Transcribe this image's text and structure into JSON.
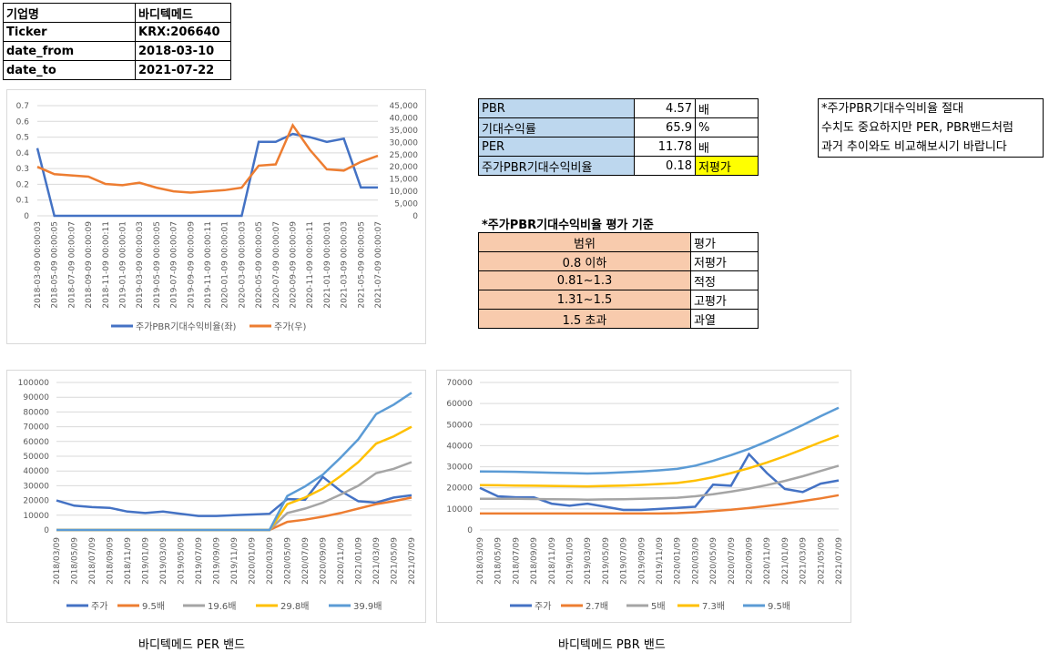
{
  "info": {
    "rows": [
      {
        "label": "기업명",
        "value": "바디텍메드"
      },
      {
        "label": "Ticker",
        "value": "KRX:206640"
      },
      {
        "label": "date_from",
        "value": "2018-03-10"
      },
      {
        "label": "date_to",
        "value": "2021-07-22"
      }
    ]
  },
  "metrics": {
    "rows": [
      {
        "label": "PBR",
        "value": "4.57",
        "unit": "배"
      },
      {
        "label": "기대수익률",
        "value": "65.9",
        "unit": "%"
      },
      {
        "label": "PER",
        "value": "11.78",
        "unit": "배"
      },
      {
        "label": "주가PBR기대수익비율",
        "value": "0.18",
        "unit": "저평가"
      }
    ]
  },
  "note": {
    "lines": [
      "*주가PBR기대수익비율 절대",
      "수치도 중요하지만 PER, PBR밴드처럼",
      "과거 추이와도 비교해보시기 바랍니다"
    ]
  },
  "criteria": {
    "title": "*주가PBR기대수익비율 평가 기준",
    "header": {
      "range": "범위",
      "eval": "평가"
    },
    "rows": [
      {
        "range": "0.8 이하",
        "eval": "저평가"
      },
      {
        "range": "0.81~1.3",
        "eval": "적정"
      },
      {
        "range": "1.31~1.5",
        "eval": "고평가"
      },
      {
        "range": "1.5 초과",
        "eval": "과열"
      }
    ]
  },
  "captions": {
    "per": "바디텍메드 PER 밴드",
    "pbr": "바디텍메드 PBR 밴드"
  },
  "colors": {
    "blue": "#4472c4",
    "orange": "#ed7d31",
    "gray": "#a5a5a5",
    "yellow": "#ffc000",
    "lightblue": "#5b9bd5"
  },
  "chart_data": [
    {
      "type": "line",
      "id": "ratio",
      "x": [
        "2018-03-09 00:00:03",
        "2018-05-09 00:00:05",
        "2018-07-09 00:00:07",
        "2018-09-09 00:00:09",
        "2018-11-09 00:00:11",
        "2019-01-09 00:00:01",
        "2019-03-09 00:00:03",
        "2019-05-09 00:00:05",
        "2019-07-09 00:00:07",
        "2019-09-09 00:00:09",
        "2019-11-09 00:00:11",
        "2020-01-09 00:00:01",
        "2020-03-09 00:00:03",
        "2020-05-09 00:00:05",
        "2020-07-09 00:00:07",
        "2020-09-09 00:00:09",
        "2020-11-09 00:00:11",
        "2021-01-09 00:00:01",
        "2021-03-09 00:00:03",
        "2021-05-09 00:00:05",
        "2021-07-09 00:00:07"
      ],
      "y_left": {
        "ticks": [
          "0",
          "0.1",
          "0.2",
          "0.3",
          "0.4",
          "0.5",
          "0.6",
          "0.7"
        ],
        "ylim": [
          0,
          0.7
        ]
      },
      "y_right": {
        "ticks": [
          "0",
          "5,000",
          "10,000",
          "15,000",
          "20,000",
          "25,000",
          "30,000",
          "35,000",
          "40,000",
          "45,000"
        ],
        "ylim": [
          0,
          45000
        ]
      },
      "series": [
        {
          "name": "주가PBR기대수익비율(좌)",
          "axis": "left",
          "color": "#4472c4",
          "values": [
            0.43,
            0,
            0,
            0,
            0,
            0,
            0,
            0,
            0,
            0,
            0,
            0,
            0,
            0.47,
            0.47,
            0.52,
            0.5,
            0.47,
            0.49,
            0.18,
            0.18
          ]
        },
        {
          "name": "주가(우)",
          "axis": "right",
          "color": "#ed7d31",
          "values": [
            20000,
            17000,
            16500,
            16000,
            13000,
            12500,
            13500,
            11500,
            10000,
            9500,
            10000,
            10500,
            11500,
            20500,
            21000,
            37000,
            27000,
            19000,
            18500,
            22000,
            24500
          ]
        }
      ]
    },
    {
      "type": "line",
      "id": "per",
      "x": [
        "2018/03/09",
        "2018/05/09",
        "2018/07/09",
        "2018/09/09",
        "2018/11/09",
        "2019/01/09",
        "2019/03/09",
        "2019/05/09",
        "2019/07/09",
        "2019/09/09",
        "2019/11/09",
        "2020/01/09",
        "2020/03/09",
        "2020/05/09",
        "2020/07/09",
        "2020/09/09",
        "2020/11/09",
        "2021/01/09",
        "2021/03/09",
        "2021/05/09",
        "2021/07/09"
      ],
      "yticks": [
        "0",
        "10000",
        "20000",
        "30000",
        "40000",
        "50000",
        "60000",
        "70000",
        "80000",
        "90000",
        "100000"
      ],
      "ylim": [
        0,
        100000
      ],
      "series": [
        {
          "name": "주가",
          "color": "#4472c4",
          "values": [
            20000,
            16500,
            15500,
            15000,
            12500,
            11500,
            12500,
            11000,
            9500,
            9500,
            10000,
            10500,
            11000,
            21000,
            20500,
            36000,
            26500,
            19500,
            18500,
            22000,
            23500
          ]
        },
        {
          "name": "9.5배",
          "color": "#ed7d31",
          "values": [
            0,
            0,
            0,
            0,
            0,
            0,
            0,
            0,
            0,
            0,
            0,
            0,
            0,
            5500,
            7000,
            9000,
            11500,
            14500,
            17500,
            19500,
            22000
          ]
        },
        {
          "name": "19.6배",
          "color": "#a5a5a5",
          "values": [
            0,
            0,
            0,
            0,
            0,
            0,
            0,
            0,
            0,
            0,
            0,
            0,
            0,
            11500,
            14500,
            18500,
            24000,
            30000,
            38500,
            41500,
            46000
          ]
        },
        {
          "name": "29.8배",
          "color": "#ffc000",
          "values": [
            0,
            0,
            0,
            0,
            0,
            0,
            0,
            0,
            0,
            0,
            0,
            0,
            0,
            17500,
            22000,
            28000,
            36500,
            46000,
            58500,
            63500,
            70000
          ]
        },
        {
          "name": "39.9배",
          "color": "#5b9bd5",
          "values": [
            0,
            0,
            0,
            0,
            0,
            0,
            0,
            0,
            0,
            0,
            0,
            0,
            0,
            23000,
            29500,
            37500,
            49000,
            61500,
            78500,
            85000,
            93000
          ]
        }
      ]
    },
    {
      "type": "line",
      "id": "pbr",
      "x": [
        "2018/03/09",
        "2018/05/09",
        "2018/07/09",
        "2018/09/09",
        "2018/11/09",
        "2019/01/09",
        "2019/03/09",
        "2019/05/09",
        "2019/07/09",
        "2019/09/09",
        "2019/11/09",
        "2020/01/09",
        "2020/03/09",
        "2020/05/09",
        "2020/07/09",
        "2020/09/09",
        "2020/11/09",
        "2021/01/09",
        "2021/03/09",
        "2021/05/09",
        "2021/07/09"
      ],
      "yticks": [
        "0",
        "10000",
        "20000",
        "30000",
        "40000",
        "50000",
        "60000",
        "70000"
      ],
      "ylim": [
        0,
        70000
      ],
      "series": [
        {
          "name": "주가",
          "color": "#4472c4",
          "values": [
            20000,
            16000,
            15500,
            15500,
            12500,
            11500,
            12500,
            11000,
            9500,
            9500,
            10000,
            10500,
            11000,
            21500,
            21000,
            36000,
            27000,
            19500,
            18000,
            22000,
            23500
          ]
        },
        {
          "name": "2.7배",
          "color": "#ed7d31",
          "values": [
            7800,
            7800,
            7800,
            7800,
            7800,
            7800,
            7800,
            7800,
            7800,
            7800,
            7800,
            8000,
            8400,
            9000,
            9600,
            10400,
            11400,
            12500,
            13700,
            15000,
            16500
          ]
        },
        {
          "name": "5배",
          "color": "#a5a5a5",
          "values": [
            14800,
            14800,
            14800,
            14700,
            14600,
            14500,
            14400,
            14500,
            14600,
            14800,
            15000,
            15300,
            16000,
            17000,
            18200,
            19600,
            21300,
            23300,
            25500,
            28000,
            30500
          ]
        },
        {
          "name": "7.3배",
          "color": "#ffc000",
          "values": [
            21300,
            21200,
            21100,
            21000,
            20900,
            20800,
            20700,
            20900,
            21100,
            21400,
            21800,
            22300,
            23400,
            25000,
            27000,
            29300,
            32000,
            35000,
            38300,
            41700,
            44800
          ]
        },
        {
          "name": "9.5배",
          "color": "#5b9bd5",
          "values": [
            27800,
            27700,
            27600,
            27400,
            27200,
            27000,
            26800,
            27000,
            27400,
            27800,
            28300,
            29000,
            30500,
            32800,
            35500,
            38500,
            42000,
            45800,
            49800,
            54000,
            58000
          ]
        }
      ]
    }
  ]
}
